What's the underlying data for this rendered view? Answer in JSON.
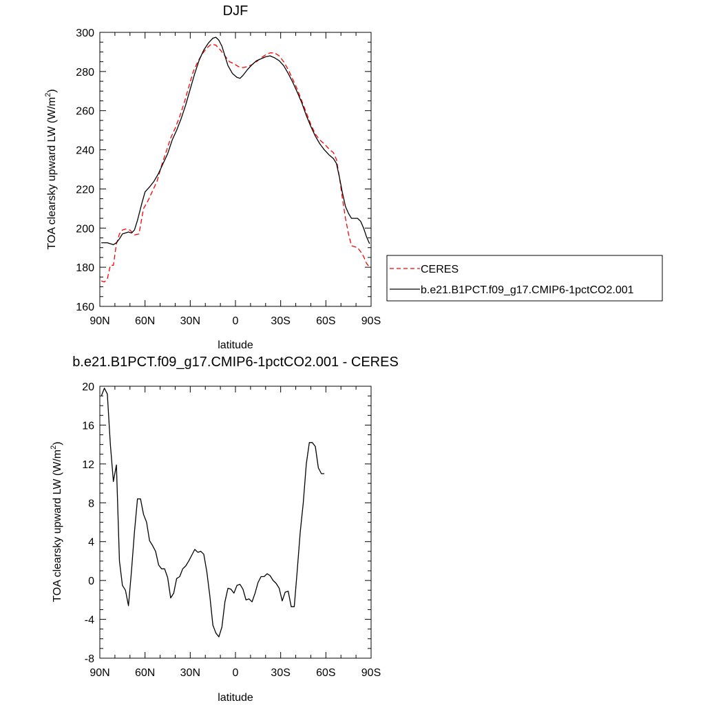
{
  "charts": [
    {
      "title": "DJF",
      "xlabel": "latitude",
      "ylabel": "TOA clearsky upward LW (W/m",
      "ylabel_sup": "2",
      "ylabel_end": ")",
      "ylim": [
        160,
        300
      ],
      "yticks": [
        160,
        180,
        200,
        220,
        240,
        260,
        280,
        300
      ],
      "xticks": [
        {
          "v": -90,
          "label": "90N"
        },
        {
          "v": -60,
          "label": "60N"
        },
        {
          "v": -30,
          "label": "30N"
        },
        {
          "v": 0,
          "label": "0"
        },
        {
          "v": 30,
          "label": "30S"
        },
        {
          "v": 60,
          "label": "60S"
        },
        {
          "v": 90,
          "label": "90S"
        }
      ]
    },
    {
      "title": "b.e21.B1PCT.f09_g17.CMIP6-1pctCO2.001 - CERES",
      "xlabel": "latitude",
      "ylabel": "TOA clearsky upward LW (W/m",
      "ylabel_sup": "2",
      "ylabel_end": ")",
      "ylim": [
        -8,
        20
      ],
      "yticks": [
        -8,
        -4,
        0,
        4,
        8,
        12,
        16,
        20
      ],
      "xticks": [
        {
          "v": -90,
          "label": "90N"
        },
        {
          "v": -60,
          "label": "60N"
        },
        {
          "v": -30,
          "label": "30N"
        },
        {
          "v": 0,
          "label": "0"
        },
        {
          "v": 30,
          "label": "30S"
        },
        {
          "v": 60,
          "label": "60S"
        },
        {
          "v": 90,
          "label": "90S"
        }
      ]
    }
  ],
  "legend": {
    "entries": [
      {
        "label": "CERES",
        "color": "#ff0000",
        "dash": true
      },
      {
        "label": "b.e21.B1PCT.f09_g17.CMIP6-1pctCO2.001",
        "color": "#000000",
        "dash": false
      }
    ]
  },
  "chart_data": [
    {
      "type": "line",
      "title": "DJF",
      "xlabel": "latitude",
      "ylabel": "TOA clearsky upward LW (W/m2)",
      "xlim": [
        -90,
        90
      ],
      "ylim": [
        160,
        300
      ],
      "x_tick_labels": [
        "90N",
        "60N",
        "30N",
        "0",
        "30S",
        "60S",
        "90S"
      ],
      "legend_position": "right",
      "series": [
        {
          "name": "CERES",
          "color": "#ff0000",
          "style": "dashed",
          "points": [
            [
              -89,
              173
            ],
            [
              -87,
              172.5
            ],
            [
              -85,
              174
            ],
            [
              -83,
              181
            ],
            [
              -81,
              181
            ],
            [
              -79,
              192
            ],
            [
              -77,
              197
            ],
            [
              -75,
              199
            ],
            [
              -73,
              199.5
            ],
            [
              -70,
              199
            ],
            [
              -67,
              196.5
            ],
            [
              -64,
              197
            ],
            [
              -61,
              210
            ],
            [
              -58,
              214
            ],
            [
              -55,
              219
            ],
            [
              -52,
              224
            ],
            [
              -49,
              232
            ],
            [
              -46,
              239
            ],
            [
              -43,
              246
            ],
            [
              -40,
              251
            ],
            [
              -37,
              257
            ],
            [
              -34,
              264
            ],
            [
              -31,
              272
            ],
            [
              -28,
              280
            ],
            [
              -25,
              285
            ],
            [
              -22,
              289
            ],
            [
              -19,
              292
            ],
            [
              -16,
              294
            ],
            [
              -13,
              293.5
            ],
            [
              -10,
              291
            ],
            [
              -7,
              288
            ],
            [
              -4,
              285
            ],
            [
              -1,
              284
            ],
            [
              2,
              282.5
            ],
            [
              5,
              282
            ],
            [
              8,
              282.5
            ],
            [
              11,
              283.5
            ],
            [
              14,
              285
            ],
            [
              17,
              287
            ],
            [
              20,
              288.5
            ],
            [
              23,
              289.5
            ],
            [
              26,
              289.5
            ],
            [
              29,
              288
            ],
            [
              32,
              285
            ],
            [
              35,
              281
            ],
            [
              38,
              276
            ],
            [
              41,
              271
            ],
            [
              44,
              265
            ],
            [
              47,
              259
            ],
            [
              50,
              253
            ],
            [
              53,
              248
            ],
            [
              56,
              245
            ],
            [
              59,
              243
            ],
            [
              62,
              240.5
            ],
            [
              65,
              238.5
            ],
            [
              67,
              235
            ],
            [
              69,
              226
            ],
            [
              71,
              215
            ],
            [
              73,
              205
            ],
            [
              75,
              197
            ],
            [
              77,
              191
            ],
            [
              79,
              190.5
            ],
            [
              81,
              190
            ],
            [
              83,
              188
            ],
            [
              85,
              185.5
            ],
            [
              87,
              182
            ],
            [
              89,
              180
            ]
          ]
        },
        {
          "name": "b.e21.B1PCT.f09_g17.CMIP6-1pctCO2.001",
          "color": "#000000",
          "style": "solid",
          "points": [
            [
              -89,
              192.5
            ],
            [
              -87,
              192.5
            ],
            [
              -85,
              192.5
            ],
            [
              -83,
              192
            ],
            [
              -81,
              191.5
            ],
            [
              -79,
              192.5
            ],
            [
              -77,
              194.5
            ],
            [
              -75,
              197
            ],
            [
              -73,
              197.5
            ],
            [
              -71,
              198
            ],
            [
              -69,
              197.5
            ],
            [
              -67,
              199
            ],
            [
              -65,
              204
            ],
            [
              -62,
              213
            ],
            [
              -60,
              218.5
            ],
            [
              -57,
              221
            ],
            [
              -54,
              224
            ],
            [
              -51,
              228
            ],
            [
              -48,
              233
            ],
            [
              -45,
              238
            ],
            [
              -42,
              245
            ],
            [
              -39,
              250
            ],
            [
              -36,
              256
            ],
            [
              -33,
              263
            ],
            [
              -30,
              271
            ],
            [
              -27,
              279
            ],
            [
              -24,
              286
            ],
            [
              -21,
              291
            ],
            [
              -18,
              294.5
            ],
            [
              -15,
              297
            ],
            [
              -13,
              297.5
            ],
            [
              -11,
              296
            ],
            [
              -9,
              293
            ],
            [
              -7,
              288
            ],
            [
              -5,
              283
            ],
            [
              -2,
              279
            ],
            [
              1,
              277
            ],
            [
              3,
              276.5
            ],
            [
              5,
              278
            ],
            [
              8,
              281
            ],
            [
              11,
              283.5
            ],
            [
              14,
              285.5
            ],
            [
              17,
              286.5
            ],
            [
              20,
              287.5
            ],
            [
              23,
              288
            ],
            [
              26,
              287
            ],
            [
              29,
              285.5
            ],
            [
              32,
              283
            ],
            [
              35,
              279
            ],
            [
              38,
              274.5
            ],
            [
              41,
              269.5
            ],
            [
              44,
              264
            ],
            [
              47,
              257.5
            ],
            [
              50,
              252
            ],
            [
              53,
              247
            ],
            [
              56,
              243
            ],
            [
              59,
              240
            ],
            [
              62,
              237.5
            ],
            [
              65,
              235.5
            ],
            [
              67,
              233
            ],
            [
              69,
              226
            ],
            [
              71,
              218
            ],
            [
              73,
              211
            ],
            [
              75,
              207.5
            ],
            [
              77,
              205
            ],
            [
              79,
              205
            ],
            [
              81,
              205
            ],
            [
              83,
              203.5
            ],
            [
              85,
              200
            ],
            [
              87,
              195.5
            ],
            [
              89,
              192
            ]
          ]
        }
      ]
    },
    {
      "type": "line",
      "title": "b.e21.B1PCT.f09_g17.CMIP6-1pctCO2.001 - CERES",
      "xlabel": "latitude",
      "ylabel": "TOA clearsky upward LW (W/m2)",
      "xlim": [
        -90,
        90
      ],
      "ylim": [
        -8,
        20
      ],
      "x_tick_labels": [
        "90N",
        "60N",
        "30N",
        "0",
        "30S",
        "60S",
        "90S"
      ],
      "series": [
        {
          "color": "#000000",
          "style": "solid",
          "points": [
            [
              -89,
              19
            ],
            [
              -87,
              19.8
            ],
            [
              -85,
              19.2
            ],
            [
              -83,
              14
            ],
            [
              -81,
              10.2
            ],
            [
              -79,
              11.9
            ],
            [
              -77,
              2
            ],
            [
              -75,
              -0.5
            ],
            [
              -73,
              -1
            ],
            [
              -71,
              -2.6
            ],
            [
              -69,
              1
            ],
            [
              -67,
              5
            ],
            [
              -65,
              8.4
            ],
            [
              -63,
              8.4
            ],
            [
              -61,
              6.8
            ],
            [
              -59,
              6
            ],
            [
              -57,
              4.1
            ],
            [
              -55,
              3.6
            ],
            [
              -53,
              3
            ],
            [
              -51,
              1.6
            ],
            [
              -49,
              1.2
            ],
            [
              -47,
              1.2
            ],
            [
              -45,
              0.3
            ],
            [
              -43,
              -1.8
            ],
            [
              -41,
              -1.3
            ],
            [
              -39,
              0.2
            ],
            [
              -37,
              0.4
            ],
            [
              -35,
              1.2
            ],
            [
              -33,
              1.5
            ],
            [
              -31,
              2
            ],
            [
              -29,
              2.6
            ],
            [
              -27,
              3.2
            ],
            [
              -25,
              2.9
            ],
            [
              -23,
              3
            ],
            [
              -21,
              2.7
            ],
            [
              -19,
              0.9
            ],
            [
              -17,
              -1.6
            ],
            [
              -15,
              -4.6
            ],
            [
              -13,
              -5.4
            ],
            [
              -11,
              -5.8
            ],
            [
              -9,
              -4.8
            ],
            [
              -7,
              -2.2
            ],
            [
              -5,
              -0.8
            ],
            [
              -3,
              -0.9
            ],
            [
              -1,
              -1.3
            ],
            [
              1,
              -0.5
            ],
            [
              3,
              -0.4
            ],
            [
              5,
              -0.9
            ],
            [
              7,
              -2
            ],
            [
              9,
              -1.9
            ],
            [
              11,
              -2.2
            ],
            [
              13,
              -1.3
            ],
            [
              15,
              -0.2
            ],
            [
              17,
              0.4
            ],
            [
              19,
              0.4
            ],
            [
              21,
              0.7
            ],
            [
              23,
              0.5
            ],
            [
              25,
              0
            ],
            [
              27,
              -0.3
            ],
            [
              29,
              -0.8
            ],
            [
              31,
              -2.1
            ],
            [
              33,
              -1.2
            ],
            [
              35,
              -1.1
            ],
            [
              37,
              -2.7
            ],
            [
              39,
              -2.7
            ],
            [
              41,
              1
            ],
            [
              43,
              5
            ],
            [
              45,
              8
            ],
            [
              47,
              12
            ],
            [
              49,
              14.2
            ],
            [
              51,
              14.2
            ],
            [
              53,
              13.8
            ],
            [
              55,
              11.6
            ],
            [
              57,
              11
            ],
            [
              59,
              11
            ]
          ]
        }
      ]
    }
  ]
}
